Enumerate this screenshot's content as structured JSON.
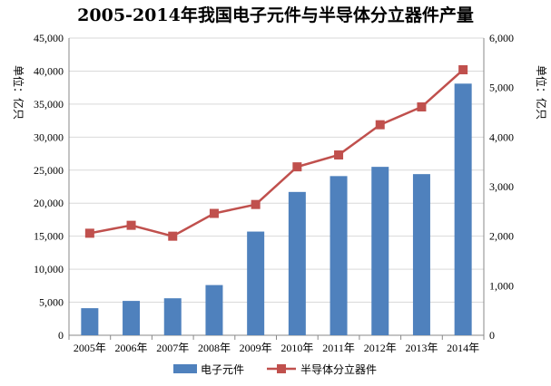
{
  "chart_data": {
    "type": "bar+line",
    "title": "2005-2014年我国电子元件与半导体分立器件产量",
    "categories": [
      "2005年",
      "2006年",
      "2007年",
      "2008年",
      "2009年",
      "2010年",
      "2011年",
      "2012年",
      "2013年",
      "2014年"
    ],
    "series": [
      {
        "name": "电子元件",
        "type": "bar",
        "axis": "left",
        "color": "#4F81BD",
        "values": [
          4100,
          5200,
          5600,
          7600,
          15700,
          21700,
          24100,
          25500,
          24400,
          38100
        ]
      },
      {
        "name": "半导体分立器件",
        "type": "line",
        "axis": "right",
        "color": "#C0504D",
        "values": [
          2060,
          2220,
          2000,
          2460,
          2640,
          3400,
          3640,
          4250,
          4610,
          5360
        ]
      }
    ],
    "y_left": {
      "label": "单位：亿只",
      "ylim": [
        0,
        45000
      ],
      "ticks": [
        "0",
        "5,000",
        "10,000",
        "15,000",
        "20,000",
        "25,000",
        "30,000",
        "35,000",
        "40,000",
        "45,000"
      ]
    },
    "y_right": {
      "label": "单位：亿只",
      "ylim": [
        0,
        6000
      ],
      "ticks": [
        "0",
        "1,000",
        "2,000",
        "3,000",
        "4,000",
        "5,000",
        "6,000"
      ]
    },
    "grid": true,
    "legend": "bottom"
  }
}
